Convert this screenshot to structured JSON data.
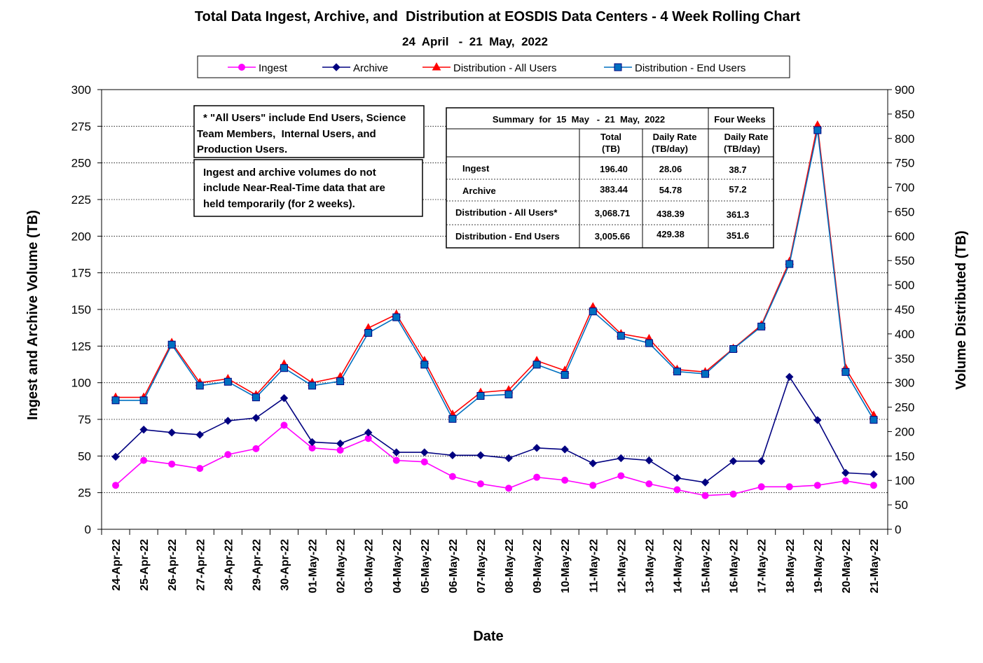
{
  "chart_data": {
    "type": "line",
    "title": "Total Data Ingest, Archive, and  Distribution at EOSDIS Data Centers - 4 Week Rolling Chart",
    "subtitle": "24  April   -  21  May,  2022",
    "xlabel": "Date",
    "ylabel_left": "Ingest and Archive Volume (TB)",
    "ylabel_right": "Volume Distributed (TB)",
    "ylim_left": [
      0,
      300
    ],
    "ylim_right": [
      0,
      900
    ],
    "left_ticks": [
      "0",
      "25",
      "50",
      "75",
      "100",
      "125",
      "150",
      "175",
      "200",
      "225",
      "250",
      "275",
      "300"
    ],
    "right_ticks": [
      "0",
      "50",
      "100",
      "150",
      "200",
      "250",
      "300",
      "350",
      "400",
      "450",
      "500",
      "550",
      "600",
      "650",
      "700",
      "750",
      "800",
      "850",
      "900"
    ],
    "grid": "horizontal dotted",
    "legend_position": "top",
    "categories": [
      "24-Apr-22",
      "25-Apr-22",
      "26-Apr-22",
      "27-Apr-22",
      "28-Apr-22",
      "29-Apr-22",
      "30-Apr-22",
      "01-May-22",
      "02-May-22",
      "03-May-22",
      "04-May-22",
      "05-May-22",
      "06-May-22",
      "07-May-22",
      "08-May-22",
      "09-May-22",
      "10-May-22",
      "11-May-22",
      "12-May-22",
      "13-May-22",
      "14-May-22",
      "15-May-22",
      "16-May-22",
      "17-May-22",
      "18-May-22",
      "19-May-22",
      "20-May-22",
      "21-May-22"
    ],
    "series": [
      {
        "name": "Ingest",
        "axis": "left",
        "color": "#ff00ff",
        "marker": "circle",
        "values": [
          30,
          47,
          44.5,
          41.5,
          51,
          55,
          71,
          55.5,
          54,
          62,
          47,
          46,
          36,
          31,
          28,
          35.5,
          33.5,
          30,
          36.5,
          31,
          27,
          23,
          24,
          29,
          29,
          30,
          33,
          30
        ]
      },
      {
        "name": "Archive",
        "axis": "left",
        "color": "#000080",
        "marker": "diamond",
        "values": [
          49.5,
          68,
          66,
          64.5,
          74,
          76,
          89.5,
          59.5,
          58.5,
          66,
          52.5,
          52.5,
          50.5,
          50.5,
          48.5,
          55.5,
          54.5,
          45,
          48.5,
          47,
          35,
          32,
          46.5,
          46.5,
          104,
          74.5,
          38.5,
          37.5
        ]
      },
      {
        "name": "Distribution - All Users",
        "axis": "right",
        "color": "#ff0000",
        "marker": "triangle",
        "values": [
          270,
          270,
          382,
          300,
          308,
          275,
          338,
          300,
          312,
          412,
          440,
          345,
          235,
          280,
          285,
          345,
          325,
          455,
          400,
          390,
          327,
          322,
          370,
          418,
          548,
          827,
          330,
          233
        ]
      },
      {
        "name": "Distribution - End Users",
        "axis": "right",
        "color": "#0070c0",
        "marker": "square",
        "values": [
          264,
          264,
          378,
          294,
          302,
          270,
          330,
          294,
          303,
          402,
          434,
          337,
          226,
          273,
          276,
          337,
          316,
          446,
          396,
          381,
          323,
          318,
          369,
          415,
          543,
          817,
          322,
          224
        ]
      }
    ]
  },
  "notes": {
    "note1": [
      "* \"All Users\" include End Users, Science",
      "Team Members,  Internal Users, and",
      "Production Users."
    ],
    "note2": [
      "Ingest and archive volumes do not",
      "include Near-Real-Time data that are",
      "held temporarily (for 2 weeks)."
    ]
  },
  "summary_table": {
    "header_summary": "Summary  for  15  May   -  21  May,  2022",
    "header_four_weeks": "Four Weeks",
    "col_total": [
      "Total",
      "(TB)"
    ],
    "col_daily_rate": [
      "Daily Rate",
      "(TB/day)"
    ],
    "col_four_week_rate": [
      "Daily Rate",
      "(TB/day)"
    ],
    "rows": [
      {
        "label": "Ingest",
        "total": "196.40",
        "daily": "28.06",
        "four_week": "38.7"
      },
      {
        "label": "Archive",
        "total": "383.44",
        "daily": "54.78",
        "four_week": "57.2"
      },
      {
        "label": "Distribution - All Users*",
        "total": "3,068.71",
        "daily": "438.39",
        "four_week": "361.3"
      },
      {
        "label": "Distribution - End Users",
        "total": "3,005.66",
        "daily": "429.38",
        "four_week": "351.6"
      }
    ]
  }
}
